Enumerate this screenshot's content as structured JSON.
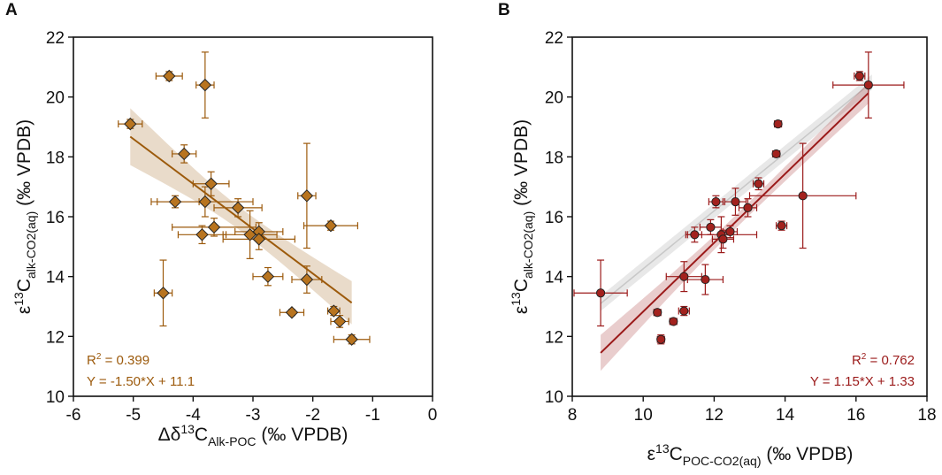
{
  "chart_data": [
    {
      "panel": "A",
      "type": "scatter",
      "marker": "diamond",
      "color": "#9c5a0c",
      "marker_fill": "#b8741f",
      "xlabel": {
        "prefix": "Δδ",
        "sup": "13",
        "main": "C",
        "sub": "Alk-POC",
        "suffix": " (‰ VPDB)"
      },
      "ylabel": {
        "prefix": "ε",
        "sup": "13",
        "main": "C",
        "sub": "alk-CO2(aq)",
        "suffix": " (‰ VPDB)"
      },
      "xlim": [
        -6,
        0
      ],
      "ylim": [
        10,
        22
      ],
      "xticks": [
        -6,
        -5,
        -4,
        -3,
        -2,
        -1,
        0
      ],
      "yticks": [
        10,
        12,
        14,
        16,
        18,
        20,
        22
      ],
      "points": [
        {
          "x": -5.05,
          "y": 19.1,
          "xerr": 0.2,
          "yerr": 0.15
        },
        {
          "x": -4.4,
          "y": 20.7,
          "xerr": 0.22,
          "yerr": 0.15
        },
        {
          "x": -3.8,
          "y": 20.4,
          "xerr": 0.15,
          "yerr": 1.1
        },
        {
          "x": -4.15,
          "y": 18.1,
          "xerr": 0.2,
          "yerr": 0.3
        },
        {
          "x": -3.7,
          "y": 17.1,
          "xerr": 0.3,
          "yerr": 0.4
        },
        {
          "x": -4.3,
          "y": 16.5,
          "xerr": 0.4,
          "yerr": 0.2
        },
        {
          "x": -3.8,
          "y": 16.5,
          "xerr": 0.8,
          "yerr": 0.5
        },
        {
          "x": -3.25,
          "y": 16.3,
          "xerr": 0.4,
          "yerr": 0.3
        },
        {
          "x": -3.65,
          "y": 15.65,
          "xerr": 0.7,
          "yerr": 0.3
        },
        {
          "x": -3.85,
          "y": 15.4,
          "xerr": 0.4,
          "yerr": 0.3
        },
        {
          "x": -3.05,
          "y": 15.4,
          "xerr": 0.45,
          "yerr": 0.8
        },
        {
          "x": -2.9,
          "y": 15.5,
          "xerr": 0.4,
          "yerr": 0.3
        },
        {
          "x": -2.9,
          "y": 15.25,
          "xerr": 0.6,
          "yerr": 0.35
        },
        {
          "x": -2.1,
          "y": 16.7,
          "xerr": 0.15,
          "yerr": 1.75
        },
        {
          "x": -1.7,
          "y": 15.7,
          "xerr": 0.45,
          "yerr": 0.15
        },
        {
          "x": -2.1,
          "y": 13.9,
          "xerr": 0.25,
          "yerr": 0.45
        },
        {
          "x": -2.75,
          "y": 14.0,
          "xerr": 0.25,
          "yerr": 0.3
        },
        {
          "x": -4.5,
          "y": 13.45,
          "xerr": 0.15,
          "yerr": 1.1
        },
        {
          "x": -2.35,
          "y": 12.8,
          "xerr": 0.2,
          "yerr": 0.1
        },
        {
          "x": -1.65,
          "y": 12.85,
          "xerr": 0.1,
          "yerr": 0.15
        },
        {
          "x": -1.55,
          "y": 12.5,
          "xerr": 0.15,
          "yerr": 0.2
        },
        {
          "x": -1.35,
          "y": 11.9,
          "xerr": 0.3,
          "yerr": 0.15
        }
      ],
      "fit": {
        "slope": -1.5,
        "intercept": 11.1,
        "xrange": [
          -5.05,
          -1.35
        ]
      },
      "ci_halfwidth": {
        "left": 0.95,
        "mid": 0.38,
        "right": 0.72
      },
      "stats": {
        "r2_label": "R",
        "r2_sup": "2",
        "r2_value": " = 0.399",
        "equation": "Y = -1.50*X + 11.1"
      }
    },
    {
      "panel": "B",
      "type": "scatter",
      "marker": "circle",
      "color": "#9b1a1a",
      "marker_fill": "#a3221e",
      "xlabel": {
        "prefix": "ε",
        "sup": "13",
        "main": "C",
        "sub": "POC-CO2(aq)",
        "suffix": " (‰ VPDB)"
      },
      "ylabel": {
        "prefix": "ε",
        "sup": "13",
        "main": "C",
        "sub": "alk-CO2(aq)",
        "suffix": " (‰ VPDB)"
      },
      "xlim": [
        8,
        18
      ],
      "ylim": [
        10,
        22
      ],
      "xticks": [
        8,
        10,
        12,
        14,
        16,
        18
      ],
      "yticks": [
        10,
        12,
        14,
        16,
        18,
        20,
        22
      ],
      "points": [
        {
          "x": 8.8,
          "y": 13.45,
          "xerr": 0.75,
          "yerr": 1.1
        },
        {
          "x": 10.4,
          "y": 12.8,
          "xerr": 0.1,
          "yerr": 0.1
        },
        {
          "x": 10.5,
          "y": 11.9,
          "xerr": 0.1,
          "yerr": 0.15
        },
        {
          "x": 10.85,
          "y": 12.5,
          "xerr": 0.1,
          "yerr": 0.1
        },
        {
          "x": 11.15,
          "y": 12.85,
          "xerr": 0.15,
          "yerr": 0.15
        },
        {
          "x": 11.15,
          "y": 14.0,
          "xerr": 0.5,
          "yerr": 0.5
        },
        {
          "x": 11.45,
          "y": 15.4,
          "xerr": 0.2,
          "yerr": 0.25
        },
        {
          "x": 11.75,
          "y": 13.9,
          "xerr": 0.5,
          "yerr": 0.5
        },
        {
          "x": 11.9,
          "y": 15.65,
          "xerr": 0.3,
          "yerr": 0.25
        },
        {
          "x": 12.05,
          "y": 16.5,
          "xerr": 0.2,
          "yerr": 0.2
        },
        {
          "x": 12.2,
          "y": 15.4,
          "xerr": 1.0,
          "yerr": 0.6
        },
        {
          "x": 12.25,
          "y": 15.25,
          "xerr": 0.3,
          "yerr": 0.3
        },
        {
          "x": 12.45,
          "y": 15.5,
          "xerr": 0.2,
          "yerr": 0.2
        },
        {
          "x": 12.6,
          "y": 16.5,
          "xerr": 0.3,
          "yerr": 0.45
        },
        {
          "x": 12.95,
          "y": 16.3,
          "xerr": 0.25,
          "yerr": 0.3
        },
        {
          "x": 13.25,
          "y": 17.1,
          "xerr": 0.15,
          "yerr": 0.2
        },
        {
          "x": 13.75,
          "y": 18.1,
          "xerr": 0.1,
          "yerr": 0.1
        },
        {
          "x": 13.8,
          "y": 19.1,
          "xerr": 0.1,
          "yerr": 0.1
        },
        {
          "x": 13.9,
          "y": 15.7,
          "xerr": 0.15,
          "yerr": 0.15
        },
        {
          "x": 14.5,
          "y": 16.7,
          "xerr": 1.5,
          "yerr": 1.75
        },
        {
          "x": 16.1,
          "y": 20.7,
          "xerr": 0.15,
          "yerr": 0.15
        },
        {
          "x": 16.35,
          "y": 20.4,
          "xerr": 1.0,
          "yerr": 1.1
        }
      ],
      "fit": {
        "slope": 1.15,
        "intercept": 1.33,
        "xrange": [
          8.8,
          16.35
        ]
      },
      "ci_halfwidth": {
        "left": 0.6,
        "mid": 0.22,
        "right": 0.35
      },
      "secondary_line": {
        "color": "#c8c8c8",
        "x": [
          8.8,
          16.45
        ],
        "y": [
          13.1,
          20.5
        ],
        "ci_halfwidth": 0.25
      },
      "stats": {
        "r2_label": "R",
        "r2_sup": "2",
        "r2_value": " = 0.762",
        "equation": "Y = 1.15*X + 1.33"
      }
    }
  ]
}
